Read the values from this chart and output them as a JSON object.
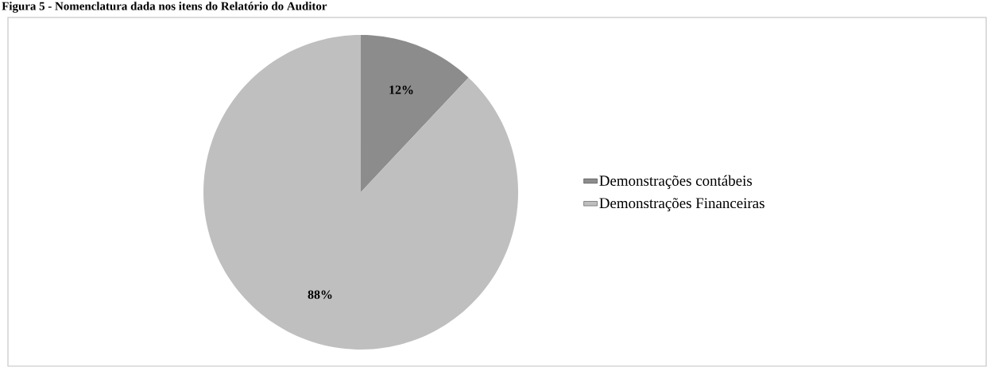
{
  "chart_data": {
    "type": "pie",
    "title": "Figura 5 - Nomenclatura dada nos itens do Relatório do Auditor",
    "categories": [
      "Demonstrações contábeis",
      "Demonstrações Financeiras"
    ],
    "values": [
      12,
      88
    ],
    "colors": [
      "#8c8c8c",
      "#bfbfbf"
    ],
    "value_labels": [
      "12%",
      "88%"
    ],
    "legend": "right"
  }
}
